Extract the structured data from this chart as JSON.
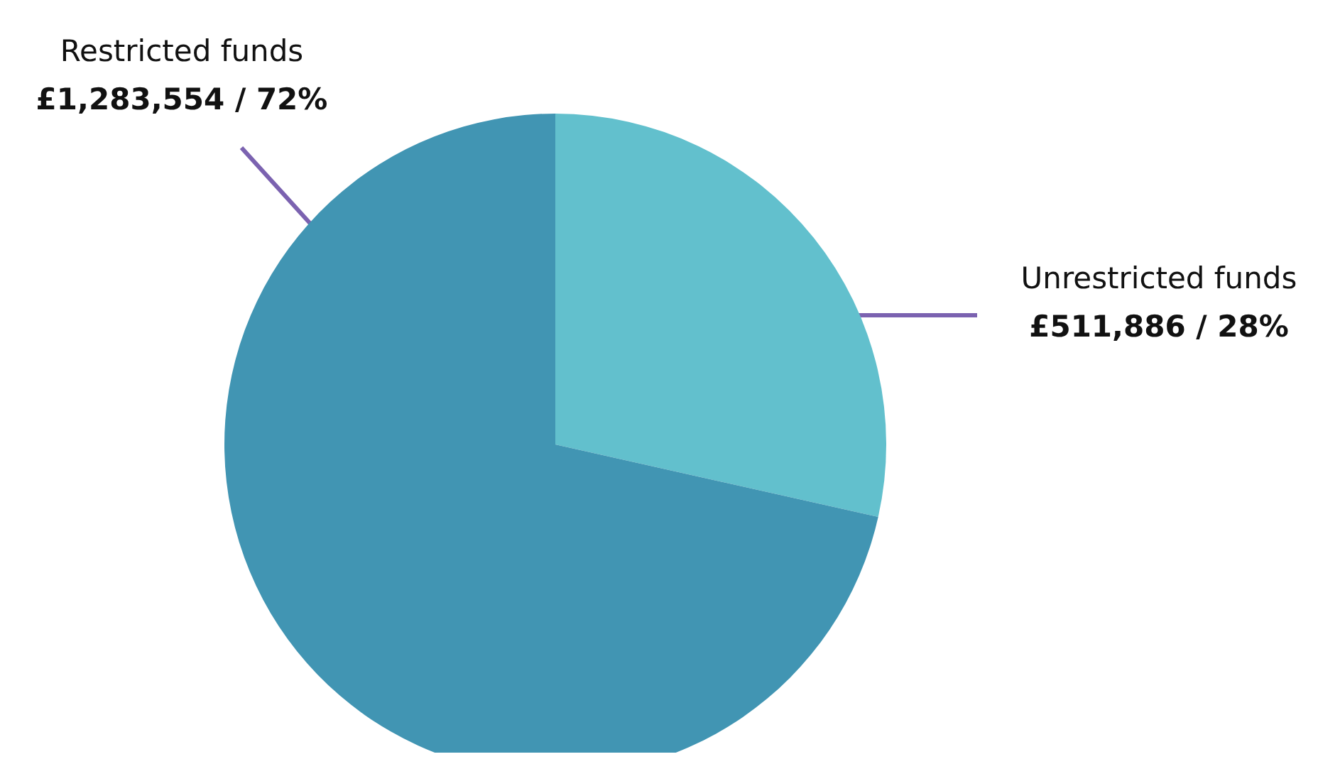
{
  "chart_data": {
    "type": "pie",
    "categories": [
      "Unrestricted funds",
      "Restricted funds"
    ],
    "values": [
      511886,
      1283554
    ],
    "colors": [
      "#62c0cd",
      "#4195b3"
    ],
    "value_labels": [
      "£511,886 / 28%",
      "£1,283,554 / 72%"
    ],
    "legend": false
  }
}
